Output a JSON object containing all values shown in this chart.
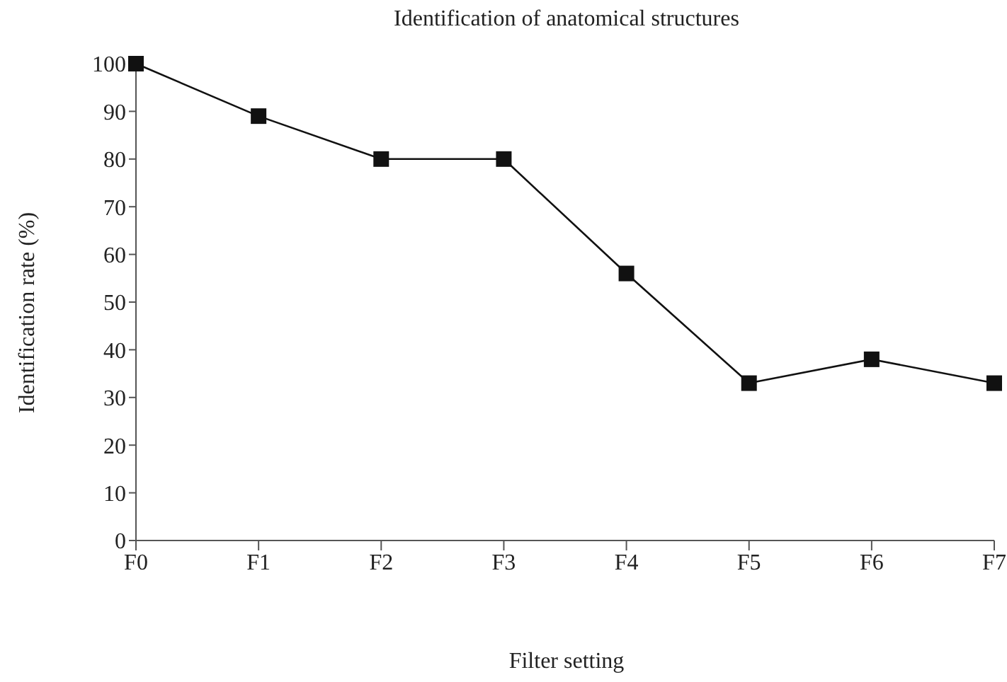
{
  "chart_data": {
    "type": "line",
    "title": "Identification of anatomical structures",
    "xlabel": "Filter setting",
    "ylabel": "Identification rate (%)",
    "categories": [
      "F0",
      "F1",
      "F2",
      "F3",
      "F4",
      "F5",
      "F6",
      "F7"
    ],
    "series": [
      {
        "color": "#111111",
        "values": [
          100,
          89,
          80,
          80,
          56,
          33,
          38,
          33
        ]
      }
    ],
    "ylim": [
      0,
      100
    ],
    "yticks": [
      0,
      10,
      20,
      30,
      40,
      50,
      60,
      70,
      80,
      90,
      100
    ],
    "grid": false,
    "legend": false,
    "marker": "square",
    "line_style": "solid"
  }
}
